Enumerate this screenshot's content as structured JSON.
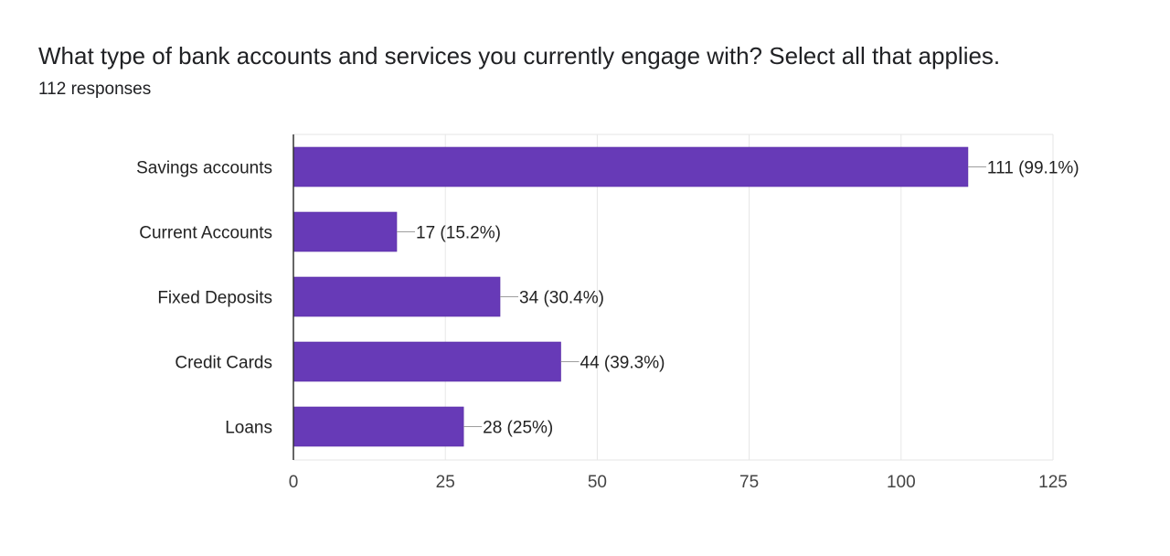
{
  "question": {
    "title": "What type of bank accounts and services you currently engage with? Select all that applies.",
    "responses": "112 responses"
  },
  "colors": {
    "bar": "#673ab7",
    "bar_border": "#5a2ea6",
    "grid": "#e6e6e6",
    "axis": "#333333",
    "leader": "#9e9e9e"
  },
  "chart_data": {
    "type": "bar",
    "orientation": "horizontal",
    "categories": [
      "Savings accounts",
      "Current Accounts",
      "Fixed Deposits",
      "Credit Cards",
      "Loans"
    ],
    "values": [
      111,
      17,
      34,
      44,
      28
    ],
    "data_labels": [
      "111 (99.1%)",
      "17 (15.2%)",
      "34 (30.4%)",
      "44 (39.3%)",
      "28 (25%)"
    ],
    "xlim": [
      0,
      125
    ],
    "xticks": [
      0,
      25,
      50,
      75,
      100,
      125
    ],
    "xtick_labels": [
      "0",
      "25",
      "50",
      "75",
      "100",
      "125"
    ],
    "grid": true
  }
}
